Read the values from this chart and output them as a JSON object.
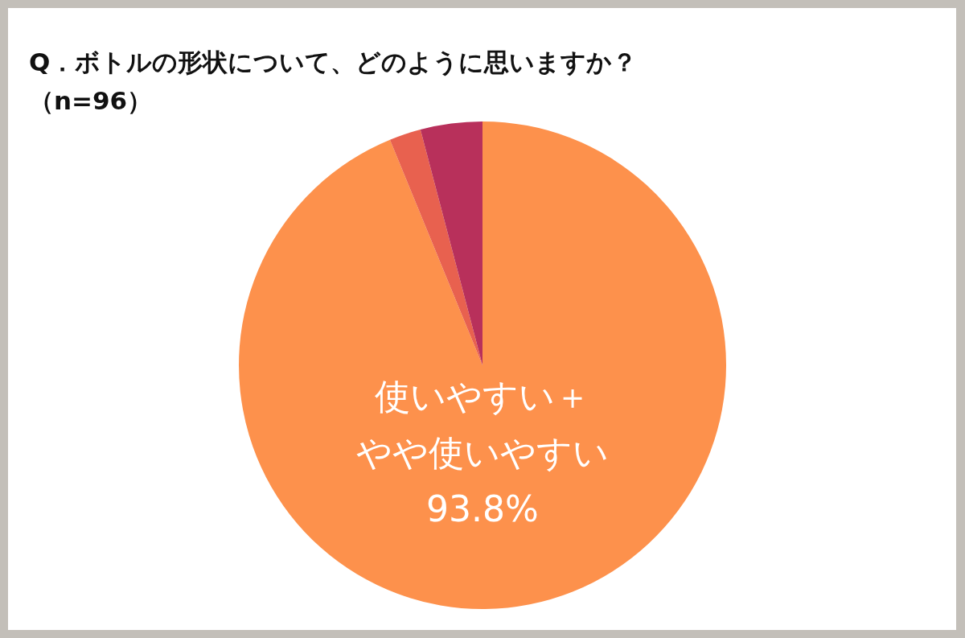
{
  "chart_data": {
    "type": "pie",
    "title": "Q．ボトルの形状について、どのように思いますか？",
    "subtitle": "（n=96）",
    "categories": [
      "使いやすい＋やや使いやすい",
      null,
      null
    ],
    "values": [
      93.8,
      2.1,
      4.1
    ],
    "colors": [
      "#fd914c",
      "#e8614f",
      "#b8305b"
    ],
    "value_labels": [
      "93.8%",
      null,
      null
    ]
  }
}
